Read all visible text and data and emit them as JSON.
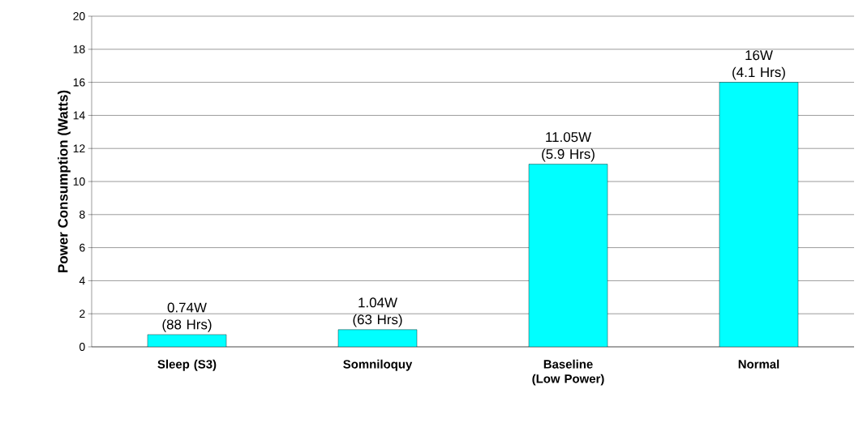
{
  "chart_data": {
    "type": "bar",
    "ylabel": "Power Consumption (Watts)",
    "categories": [
      "Sleep (S3)",
      "Somniloquy",
      "Baseline (Low Power)",
      "Normal"
    ],
    "values": [
      0.74,
      1.04,
      11.05,
      16
    ],
    "value_labels": [
      "0.74W (88 Hrs)",
      "1.04W (63 Hrs)",
      "11.05W (5.9 Hrs)",
      "16W (4.1 Hrs)"
    ],
    "color": "#00ffff",
    "ylim": [
      0,
      20
    ],
    "yticks": [
      0,
      2,
      4,
      6,
      8,
      10,
      12,
      14,
      16,
      18,
      20
    ],
    "grid": "y"
  }
}
